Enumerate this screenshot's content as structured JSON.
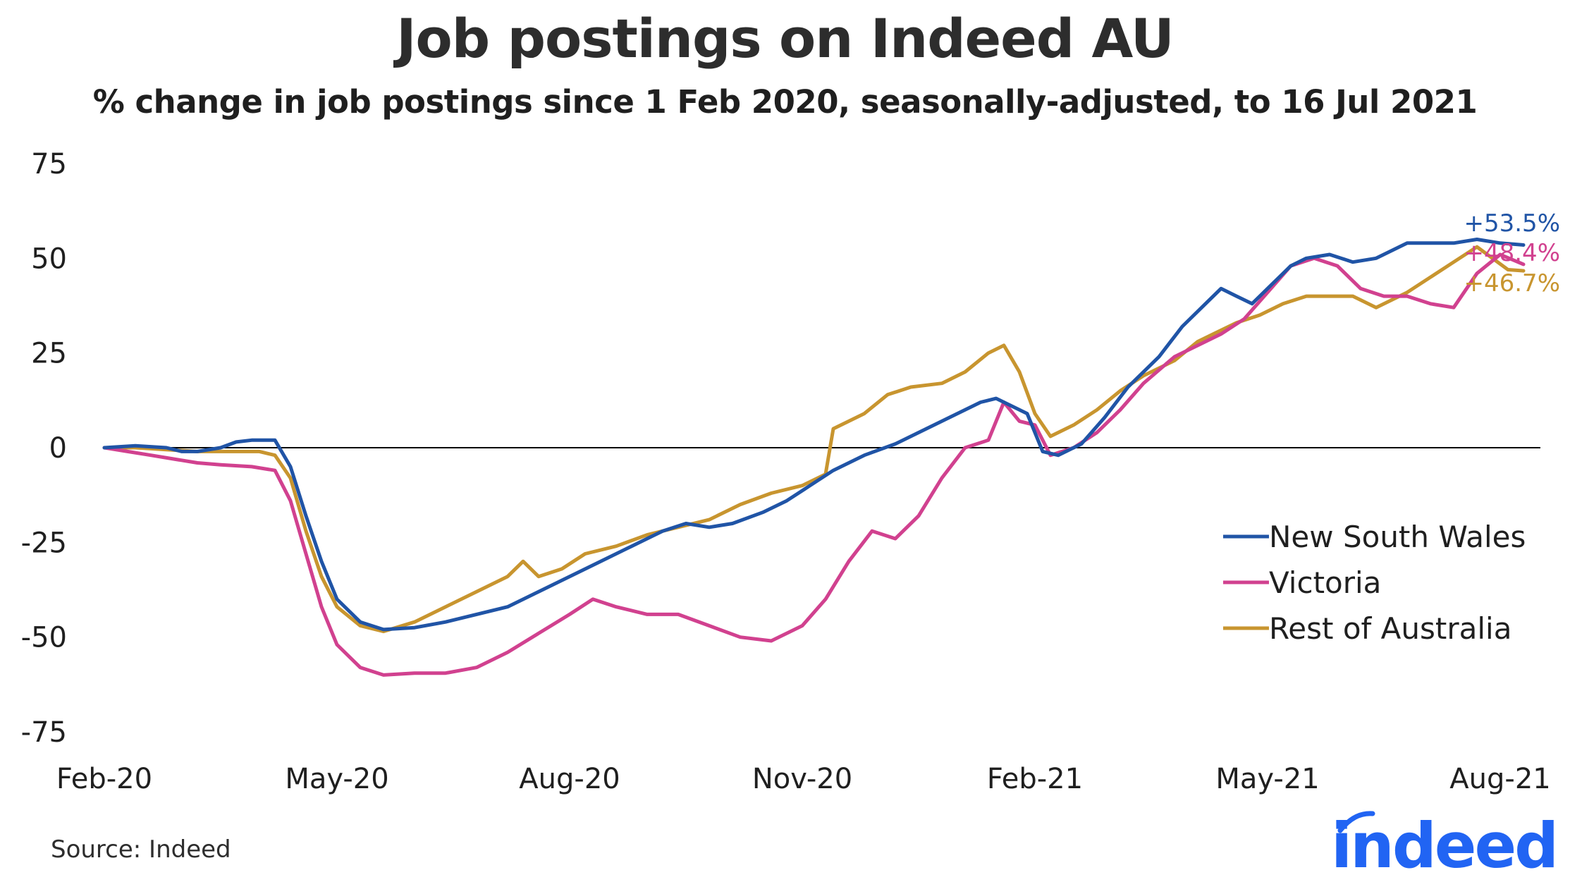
{
  "chart_data": {
    "type": "line",
    "title": "Job postings on Indeed AU",
    "subtitle": "% change in job postings since 1 Feb 2020, seasonally-adjusted, to 16 Jul 2021",
    "xlabel": "",
    "ylabel": "",
    "x_ticks": [
      {
        "label": "Feb-20",
        "month": 0
      },
      {
        "label": "May-20",
        "month": 3
      },
      {
        "label": "Aug-20",
        "month": 6
      },
      {
        "label": "Nov-20",
        "month": 9
      },
      {
        "label": "Feb-21",
        "month": 12
      },
      {
        "label": "May-21",
        "month": 15
      },
      {
        "label": "Aug-21",
        "month": 18
      }
    ],
    "xlim_months": [
      0,
      18
    ],
    "ylim": [
      -75,
      75
    ],
    "y_ticks": [
      75,
      50,
      25,
      0,
      -25,
      -50,
      -75
    ],
    "zero_line": true,
    "legend_position": "bottom-right",
    "series": [
      {
        "name": "New South Wales",
        "color": "#2054a6",
        "end_label": "+53.5%",
        "points": [
          [
            0,
            0
          ],
          [
            0.4,
            0.5
          ],
          [
            0.8,
            0
          ],
          [
            1.0,
            -1
          ],
          [
            1.2,
            -1
          ],
          [
            1.5,
            0
          ],
          [
            1.7,
            1.5
          ],
          [
            1.9,
            2
          ],
          [
            2.2,
            2
          ],
          [
            2.4,
            -5
          ],
          [
            2.6,
            -18
          ],
          [
            2.8,
            -30
          ],
          [
            3.0,
            -40
          ],
          [
            3.3,
            -46
          ],
          [
            3.6,
            -48
          ],
          [
            4.0,
            -47.5
          ],
          [
            4.4,
            -46
          ],
          [
            4.8,
            -44
          ],
          [
            5.2,
            -42
          ],
          [
            5.6,
            -38
          ],
          [
            6.0,
            -34
          ],
          [
            6.4,
            -30
          ],
          [
            6.8,
            -26
          ],
          [
            7.2,
            -22
          ],
          [
            7.5,
            -20
          ],
          [
            7.8,
            -21
          ],
          [
            8.1,
            -20
          ],
          [
            8.5,
            -17
          ],
          [
            8.8,
            -14
          ],
          [
            9.1,
            -10
          ],
          [
            9.4,
            -6
          ],
          [
            9.8,
            -2
          ],
          [
            10.2,
            1
          ],
          [
            10.6,
            5
          ],
          [
            11.0,
            9
          ],
          [
            11.3,
            12
          ],
          [
            11.5,
            13
          ],
          [
            11.7,
            11
          ],
          [
            11.9,
            9
          ],
          [
            12.1,
            -1
          ],
          [
            12.3,
            -2
          ],
          [
            12.6,
            1
          ],
          [
            12.9,
            8
          ],
          [
            13.2,
            16
          ],
          [
            13.6,
            24
          ],
          [
            13.9,
            32
          ],
          [
            14.2,
            38
          ],
          [
            14.4,
            42
          ],
          [
            14.6,
            40
          ],
          [
            14.8,
            38
          ],
          [
            15.0,
            42
          ],
          [
            15.3,
            48
          ],
          [
            15.5,
            50
          ],
          [
            15.8,
            51
          ],
          [
            16.1,
            49
          ],
          [
            16.4,
            50
          ],
          [
            16.8,
            54
          ],
          [
            17.1,
            54
          ],
          [
            17.4,
            54
          ],
          [
            17.7,
            55
          ],
          [
            18.0,
            54
          ],
          [
            18.3,
            53.5
          ]
        ]
      },
      {
        "name": "Victoria",
        "color": "#d1418f",
        "end_label": "+48.4%",
        "points": [
          [
            0,
            0
          ],
          [
            0.3,
            -1
          ],
          [
            0.6,
            -2
          ],
          [
            0.9,
            -3
          ],
          [
            1.2,
            -4
          ],
          [
            1.5,
            -4.5
          ],
          [
            1.9,
            -5
          ],
          [
            2.2,
            -6
          ],
          [
            2.4,
            -14
          ],
          [
            2.6,
            -28
          ],
          [
            2.8,
            -42
          ],
          [
            3.0,
            -52
          ],
          [
            3.3,
            -58
          ],
          [
            3.6,
            -60
          ],
          [
            4.0,
            -59.5
          ],
          [
            4.4,
            -59.5
          ],
          [
            4.8,
            -58
          ],
          [
            5.2,
            -54
          ],
          [
            5.6,
            -49
          ],
          [
            6.0,
            -44
          ],
          [
            6.3,
            -40
          ],
          [
            6.6,
            -42
          ],
          [
            7.0,
            -44
          ],
          [
            7.4,
            -44
          ],
          [
            7.8,
            -47
          ],
          [
            8.2,
            -50
          ],
          [
            8.6,
            -51
          ],
          [
            9.0,
            -47
          ],
          [
            9.3,
            -40
          ],
          [
            9.6,
            -30
          ],
          [
            9.9,
            -22
          ],
          [
            10.2,
            -24
          ],
          [
            10.5,
            -18
          ],
          [
            10.8,
            -8
          ],
          [
            11.1,
            0
          ],
          [
            11.4,
            2
          ],
          [
            11.6,
            12
          ],
          [
            11.8,
            7
          ],
          [
            12.0,
            6
          ],
          [
            12.2,
            -2
          ],
          [
            12.5,
            0
          ],
          [
            12.8,
            4
          ],
          [
            13.1,
            10
          ],
          [
            13.4,
            17
          ],
          [
            13.8,
            24
          ],
          [
            14.1,
            27
          ],
          [
            14.4,
            30
          ],
          [
            14.7,
            34
          ],
          [
            15.0,
            41
          ],
          [
            15.3,
            48
          ],
          [
            15.6,
            50
          ],
          [
            15.9,
            48
          ],
          [
            16.2,
            42
          ],
          [
            16.5,
            40
          ],
          [
            16.8,
            40
          ],
          [
            17.1,
            38
          ],
          [
            17.4,
            37
          ],
          [
            17.7,
            46
          ],
          [
            18.0,
            51
          ],
          [
            18.3,
            48.4
          ]
        ]
      },
      {
        "name": "Rest of Australia",
        "color": "#c8952f",
        "end_label": "+46.7%",
        "points": [
          [
            0,
            0
          ],
          [
            0.4,
            0
          ],
          [
            0.8,
            -0.5
          ],
          [
            1.2,
            -1
          ],
          [
            1.6,
            -1
          ],
          [
            2.0,
            -1
          ],
          [
            2.2,
            -2
          ],
          [
            2.4,
            -8
          ],
          [
            2.6,
            -22
          ],
          [
            2.8,
            -34
          ],
          [
            3.0,
            -42
          ],
          [
            3.3,
            -47
          ],
          [
            3.6,
            -48.5
          ],
          [
            4.0,
            -46
          ],
          [
            4.4,
            -42
          ],
          [
            4.8,
            -38
          ],
          [
            5.2,
            -34
          ],
          [
            5.4,
            -30
          ],
          [
            5.6,
            -34
          ],
          [
            5.9,
            -32
          ],
          [
            6.2,
            -28
          ],
          [
            6.6,
            -26
          ],
          [
            7.0,
            -23
          ],
          [
            7.4,
            -21
          ],
          [
            7.8,
            -19
          ],
          [
            8.2,
            -15
          ],
          [
            8.6,
            -12
          ],
          [
            9.0,
            -10
          ],
          [
            9.3,
            -7
          ],
          [
            9.4,
            5
          ],
          [
            9.8,
            9
          ],
          [
            10.1,
            14
          ],
          [
            10.4,
            16
          ],
          [
            10.8,
            17
          ],
          [
            11.1,
            20
          ],
          [
            11.4,
            25
          ],
          [
            11.6,
            27
          ],
          [
            11.8,
            20
          ],
          [
            12.0,
            9
          ],
          [
            12.2,
            3
          ],
          [
            12.5,
            6
          ],
          [
            12.8,
            10
          ],
          [
            13.1,
            15
          ],
          [
            13.4,
            19
          ],
          [
            13.8,
            23
          ],
          [
            14.1,
            28
          ],
          [
            14.3,
            30
          ],
          [
            14.6,
            33
          ],
          [
            14.9,
            35
          ],
          [
            15.2,
            38
          ],
          [
            15.5,
            40
          ],
          [
            15.8,
            40
          ],
          [
            16.1,
            40
          ],
          [
            16.4,
            37
          ],
          [
            16.8,
            41
          ],
          [
            17.1,
            45
          ],
          [
            17.4,
            49
          ],
          [
            17.7,
            53
          ],
          [
            17.9,
            50
          ],
          [
            18.1,
            47
          ],
          [
            18.3,
            46.7
          ]
        ]
      }
    ],
    "source": "Source: Indeed",
    "logo_text": "indeed"
  }
}
